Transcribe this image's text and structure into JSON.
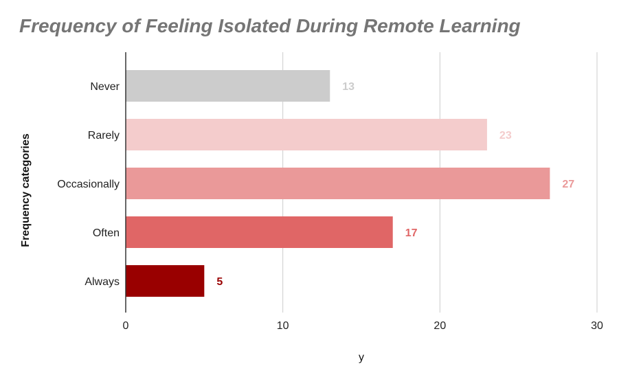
{
  "chart_data": {
    "type": "bar",
    "orientation": "horizontal",
    "title": "Frequency of Feeling Isolated During Remote Learning",
    "xlabel": "y",
    "ylabel": "Frequency categories",
    "categories": [
      "Never",
      "Rarely",
      "Occasionally",
      "Often",
      "Always"
    ],
    "values": [
      13,
      23,
      27,
      17,
      5
    ],
    "colors": [
      "#cccccc",
      "#f4cccc",
      "#ea9999",
      "#e06666",
      "#990000"
    ],
    "xlim": [
      0,
      30
    ],
    "xticks": [
      "0",
      "10",
      "20",
      "30"
    ],
    "grid": true,
    "legend": "none"
  }
}
